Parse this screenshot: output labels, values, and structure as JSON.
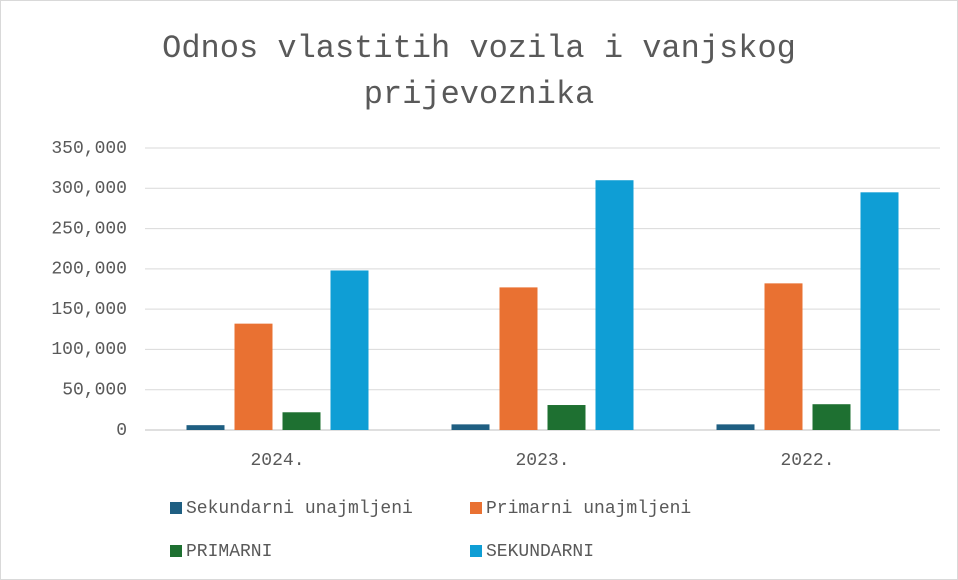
{
  "chart_data": {
    "type": "bar",
    "title": "Odnos vlastitih vozila i vanjskog prijevoznika",
    "categories": [
      "2024.",
      "2023.",
      "2022."
    ],
    "series": [
      {
        "name": "Sekundarni unajmljeni",
        "color": "#1f5f82",
        "values": [
          6000,
          7000,
          7000
        ]
      },
      {
        "name": "Primarni unajmljeni",
        "color": "#e97132",
        "values": [
          132000,
          177000,
          182000
        ]
      },
      {
        "name": "PRIMARNI",
        "color": "#1e7031",
        "values": [
          22000,
          31000,
          32000
        ]
      },
      {
        "name": "SEKUNDARNI",
        "color": "#0f9ed5",
        "values": [
          198000,
          310000,
          295000
        ]
      }
    ],
    "ylim": [
      0,
      350000
    ],
    "yticks": [
      0,
      {
        "value": 50000,
        "label": "50,000"
      },
      {
        "value": 100000,
        "label": "100,000"
      },
      {
        "value": 150000,
        "label": "150,000"
      },
      {
        "value": 200000,
        "label": "200,000"
      },
      {
        "value": 250000,
        "label": "250,000"
      },
      {
        "value": 300000,
        "label": "300,000"
      },
      {
        "value": 350000,
        "label": "350,000"
      }
    ],
    "grid": true
  }
}
